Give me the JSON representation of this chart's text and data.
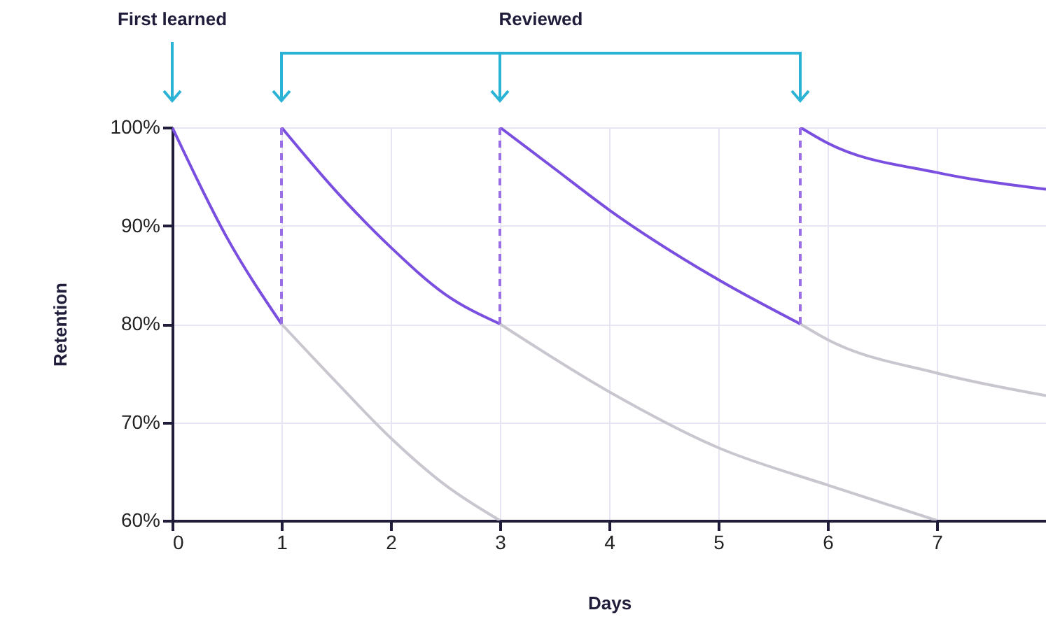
{
  "chart_data": {
    "type": "line",
    "xlabel": "Days",
    "ylabel": "Retention",
    "xlim": [
      0,
      8
    ],
    "xticks": [
      0,
      1,
      2,
      3,
      4,
      5,
      6,
      7
    ],
    "ylim": [
      60,
      100
    ],
    "yticks": [
      {
        "value": 60,
        "label": "60%"
      },
      {
        "value": 70,
        "label": "70%"
      },
      {
        "value": 80,
        "label": "80%"
      },
      {
        "value": 90,
        "label": "90%"
      },
      {
        "value": 100,
        "label": "100%"
      }
    ],
    "grid": true,
    "legend": false,
    "marker": "none",
    "annotations": [
      "First learned",
      "Reviewed"
    ],
    "series": [
      {
        "color": "#c9c6cf",
        "x": [
          1,
          1.5,
          2,
          2.5,
          3
        ],
        "values": [
          80,
          74.1,
          68.4,
          63.6,
          60
        ]
      },
      {
        "color": "#c9c6cf",
        "x": [
          3,
          4,
          5,
          6,
          7
        ],
        "values": [
          80,
          73.1,
          67.4,
          63.6,
          60
        ]
      },
      {
        "color": "#c9c6cf",
        "x": [
          5.75,
          6,
          7,
          8
        ],
        "values": [
          80,
          78.4,
          75,
          72.7
        ]
      },
      {
        "color": "#7a4fe0",
        "x": [
          0,
          0.5,
          1
        ],
        "values": [
          100,
          88.8,
          80
        ]
      },
      {
        "color": "#7a4fe0",
        "x": [
          1,
          1.5,
          2,
          2.5,
          3
        ],
        "values": [
          100,
          93.5,
          87.8,
          83,
          80
        ]
      },
      {
        "color": "#7a4fe0",
        "x": [
          3,
          3.5,
          4,
          5,
          5.75
        ],
        "values": [
          100,
          95.8,
          91.6,
          84.5,
          80
        ]
      },
      {
        "color": "#7a4fe0",
        "x": [
          5.75,
          6,
          7,
          8
        ],
        "values": [
          100,
          98.4,
          95.4,
          93.7
        ]
      },
      {
        "color": "#9a6fe6",
        "line_style": "dashed",
        "x": [
          1,
          1
        ],
        "values": [
          80,
          100
        ]
      },
      {
        "color": "#9a6fe6",
        "line_style": "dashed",
        "x": [
          3,
          3
        ],
        "values": [
          80,
          100
        ]
      },
      {
        "color": "#9a6fe6",
        "line_style": "dashed",
        "x": [
          5.75,
          5.75
        ],
        "values": [
          80,
          100
        ]
      }
    ]
  }
}
